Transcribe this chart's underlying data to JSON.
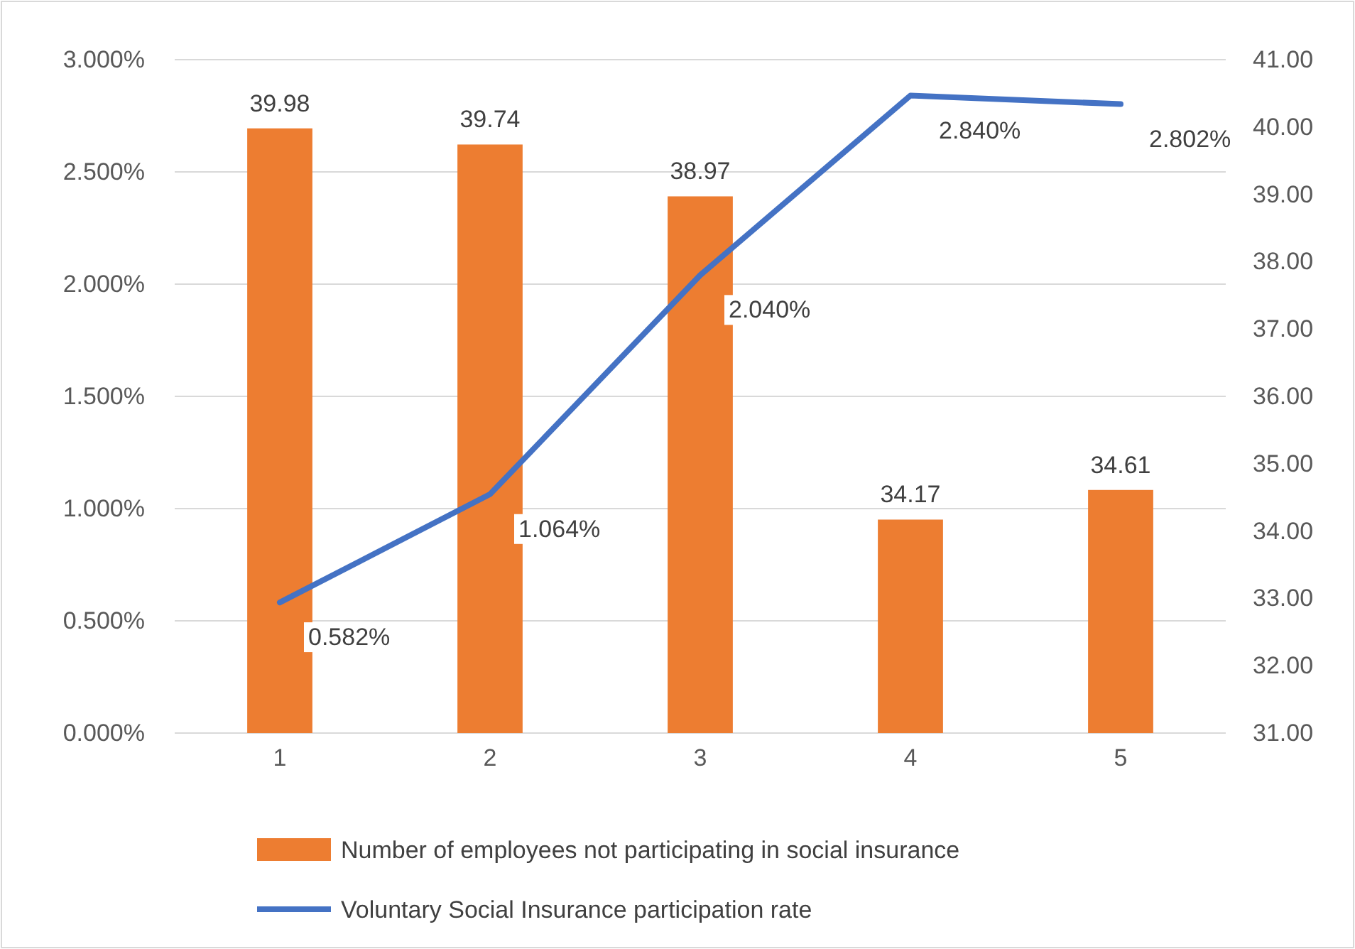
{
  "chart_data": {
    "type": "bar",
    "categories": [
      "1",
      "2",
      "3",
      "4",
      "5"
    ],
    "series": [
      {
        "name": "Number of employees not participating in social insurance",
        "axis": "y2",
        "color": "#ed7d31",
        "values": [
          39.98,
          39.74,
          38.97,
          34.17,
          34.61
        ],
        "value_labels": [
          "39.98",
          "39.74",
          "38.97",
          "34.17",
          "34.61"
        ]
      },
      {
        "name": "Voluntary Social Insurance participation rate",
        "type": "line",
        "axis": "y",
        "color": "#4472c4",
        "values": [
          0.582,
          1.064,
          2.04,
          2.84,
          2.802
        ],
        "value_labels": [
          "0.582%",
          "1.064%",
          "2.040%",
          "2.840%",
          "2.802%"
        ]
      }
    ],
    "ylim": [
      0,
      3
    ],
    "yticks": [
      {
        "value": 0,
        "label": "0.000%"
      },
      {
        "value": 0.5,
        "label": "0.500%"
      },
      {
        "value": 1,
        "label": "1.000%"
      },
      {
        "value": 1.5,
        "label": "1.500%"
      },
      {
        "value": 2,
        "label": "2.000%"
      },
      {
        "value": 2.5,
        "label": "2.500%"
      },
      {
        "value": 3,
        "label": "3.000%"
      }
    ],
    "y2lim": [
      31,
      41
    ],
    "y2ticks": [
      {
        "value": 31,
        "label": "31.00"
      },
      {
        "value": 32,
        "label": "32.00"
      },
      {
        "value": 33,
        "label": "33.00"
      },
      {
        "value": 34,
        "label": "34.00"
      },
      {
        "value": 35,
        "label": "35.00"
      },
      {
        "value": 36,
        "label": "36.00"
      },
      {
        "value": 37,
        "label": "37.00"
      },
      {
        "value": 38,
        "label": "38.00"
      },
      {
        "value": 39,
        "label": "39.00"
      },
      {
        "value": 40,
        "label": "40.00"
      },
      {
        "value": 41,
        "label": "41.00"
      }
    ],
    "grid": true,
    "legend": "bottom",
    "marker": "none",
    "line_style": "solid"
  }
}
